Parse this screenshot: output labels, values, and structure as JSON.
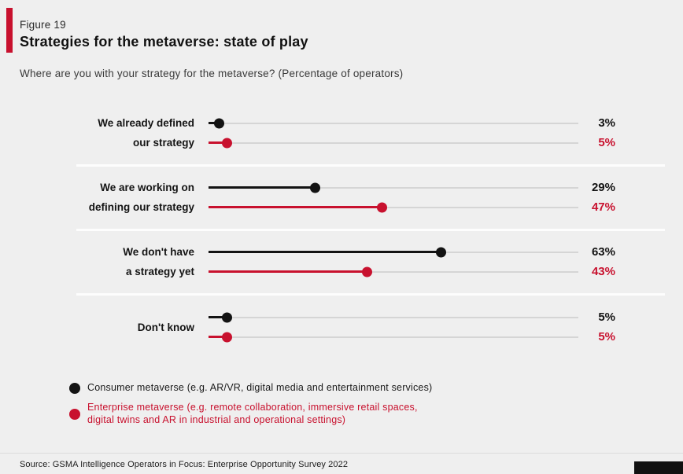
{
  "header": {
    "figure_label": "Figure 19",
    "title": "Strategies for the metaverse: state of play",
    "subtitle": "Where are you with your strategy for the metaverse? (Percentage of operators)"
  },
  "colors": {
    "accent_red": "#c8112e",
    "series_black": "#131313",
    "track_gray": "#d5d5d5",
    "background": "#efefef"
  },
  "chart_data": {
    "type": "bar",
    "variant": "horizontal-lollipop",
    "orientation": "horizontal",
    "unit": "%",
    "axis_range": [
      0,
      100
    ],
    "grid": false,
    "legend_position": "bottom",
    "title": "Strategies for the metaverse: state of play",
    "subtitle": "Where are you with your strategy for the metaverse? (Percentage of operators)",
    "categories": [
      "We already defined our strategy",
      "We are working on defining our strategy",
      "We don't have a strategy yet",
      "Don't know"
    ],
    "category_lines": [
      [
        "We already defined",
        "our strategy"
      ],
      [
        "We are working on",
        "defining our strategy"
      ],
      [
        "We don't have",
        "a strategy yet"
      ],
      [
        "Don't know"
      ]
    ],
    "series": [
      {
        "name": "Consumer metaverse (e.g. AR/VR, digital media and entertainment services)",
        "color": "#131313",
        "values": [
          3,
          29,
          63,
          5
        ],
        "labels": [
          "3%",
          "29%",
          "63%",
          "5%"
        ]
      },
      {
        "name": "Enterprise metaverse (e.g. remote collaboration, immersive retail spaces, digital twins and AR in industrial and operational settings)",
        "color": "#c8112e",
        "values": [
          5,
          47,
          43,
          5
        ],
        "labels": [
          "5%",
          "47%",
          "43%",
          "5%"
        ]
      }
    ]
  },
  "legend": {
    "consumer": "Consumer metaverse (e.g. AR/VR, digital media and entertainment services)",
    "enterprise_line1": "Enterprise metaverse (e.g. remote collaboration, immersive retail spaces,",
    "enterprise_line2": "digital twins and AR in industrial and operational settings)"
  },
  "footer": {
    "source": "Source: GSMA Intelligence Operators in Focus: Enterprise Opportunity Survey 2022"
  }
}
